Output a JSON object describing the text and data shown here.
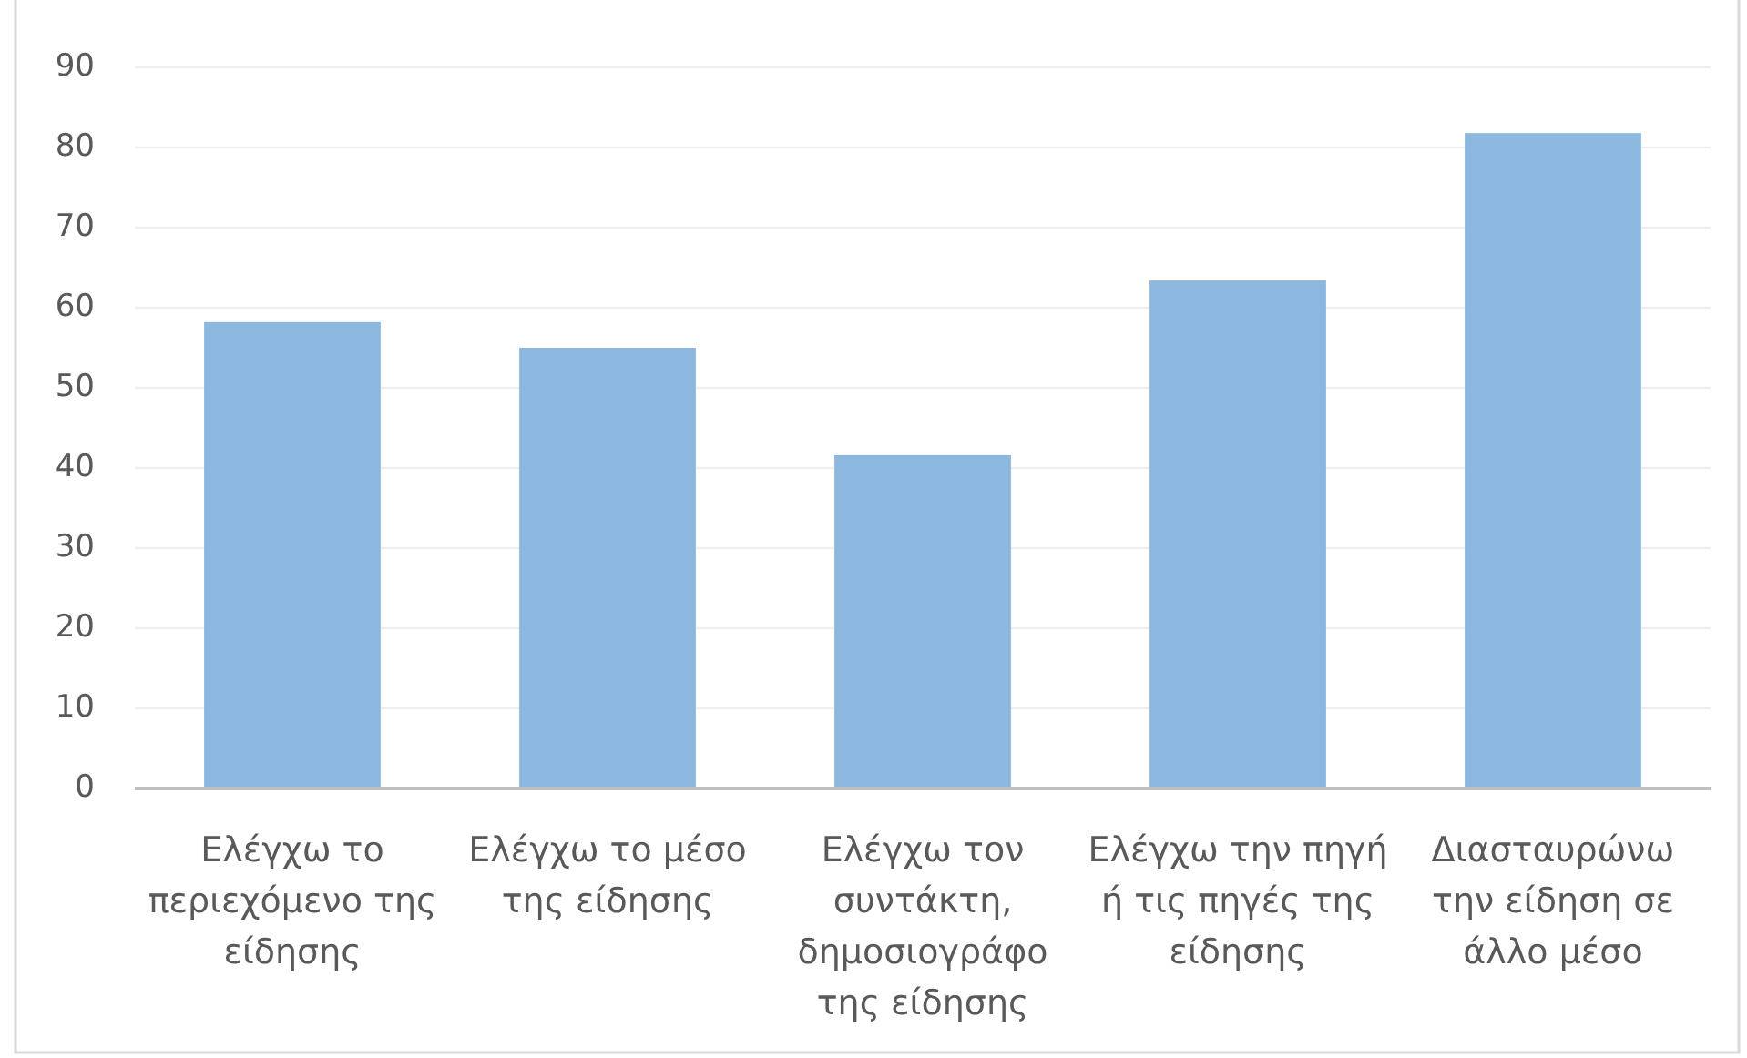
{
  "chart_data": {
    "type": "bar",
    "categories": [
      "Ελέγχω το περιεχόμενο της είδησης",
      "Ελέγχω το μέσο της είδησης",
      "Ελέγχω τον συντάκτη, δημοσιογράφο της είδησης",
      "Ελέγχω την πηγή ή τις πηγές της είδησης",
      "Διασταυρώνω την είδηση σε άλλο μέσο"
    ],
    "values": [
      58.2,
      55.0,
      41.6,
      63.4,
      81.8
    ],
    "color": "#8cb8e0",
    "ylim": [
      0,
      90
    ],
    "yticks": [
      0,
      10,
      20,
      30,
      40,
      50,
      60,
      70,
      80,
      90
    ],
    "grid": "y"
  }
}
